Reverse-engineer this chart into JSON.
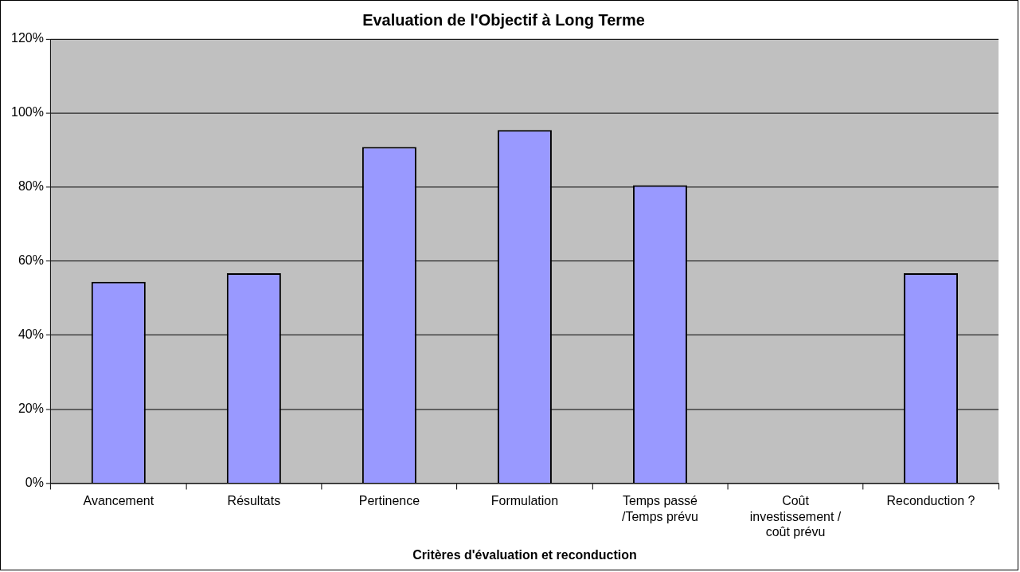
{
  "chart_data": {
    "type": "bar",
    "title": "Evaluation de l'Objectif à Long Terme",
    "xlabel": "Critères d'évaluation et reconduction",
    "categories": [
      "Avancement",
      "Résultats",
      "Pertinence",
      "Formulation",
      "Temps passé /Temps prévu",
      "Coût investissement / coût prévu",
      "Reconduction ?"
    ],
    "values": [
      54.4,
      56.7,
      90.8,
      95.4,
      80.5,
      null,
      56.7
    ],
    "color": "#9999ff",
    "ylim": [
      0,
      120
    ],
    "yticks": [
      {
        "value": 0,
        "label": "0%"
      },
      {
        "value": 20,
        "label": "20%"
      },
      {
        "value": 40,
        "label": "40%"
      },
      {
        "value": 60,
        "label": "60%"
      },
      {
        "value": 80,
        "label": "80%"
      },
      {
        "value": 100,
        "label": "100%"
      },
      {
        "value": 120,
        "label": "120%"
      }
    ],
    "grid": "y",
    "legend": false
  }
}
